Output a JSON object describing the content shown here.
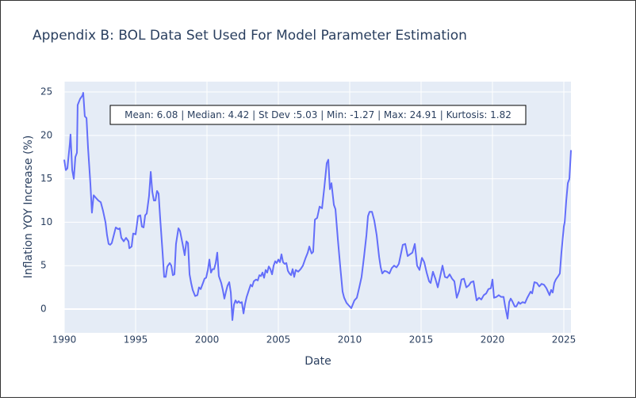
{
  "chart_data": {
    "type": "line",
    "title": "Appendix B: BOL Data Set Used For Model Parameter Estimation",
    "xlabel": "Date",
    "ylabel": "Inflation YOY Increase (%)",
    "annotation": "Mean: 6.08 | Median: 4.42 | St Dev :5.03 | Min: -1.27 | Max: 24.91 | Kurtosis: 1.82",
    "xlim": [
      1990,
      2025.5
    ],
    "xticks": [
      1990,
      1995,
      2000,
      2005,
      2010,
      2015,
      2020,
      2025
    ],
    "ylim": [
      -2.74,
      26.19
    ],
    "yticks": [
      0,
      5,
      10,
      15,
      20,
      25
    ],
    "grid": true,
    "x": [
      1990,
      1990.11,
      1990.22,
      1990.39,
      1990.44,
      1990.56,
      1990.67,
      1990.78,
      1990.89,
      1990.94,
      1991.11,
      1991.28,
      1991.33,
      1991.44,
      1991.56,
      1991.67,
      1991.83,
      1991.94,
      1992.06,
      1992.22,
      1992.39,
      1992.56,
      1992.72,
      1992.89,
      1993,
      1993.11,
      1993.22,
      1993.33,
      1993.44,
      1993.61,
      1993.78,
      1993.89,
      1994,
      1994.17,
      1994.33,
      1994.5,
      1994.56,
      1994.72,
      1994.83,
      1995,
      1995.17,
      1995.33,
      1995.44,
      1995.56,
      1995.67,
      1995.78,
      1995.94,
      1996.06,
      1996.17,
      1996.28,
      1996.39,
      1996.5,
      1996.61,
      1996.72,
      1996.89,
      1997,
      1997.11,
      1997.22,
      1997.39,
      1997.5,
      1997.61,
      1997.72,
      1997.83,
      1998,
      1998.11,
      1998.28,
      1998.44,
      1998.56,
      1998.67,
      1998.78,
      1998.89,
      1999,
      1999.17,
      1999.33,
      1999.44,
      1999.56,
      1999.72,
      1999.83,
      1999.94,
      2000.06,
      2000.17,
      2000.28,
      2000.39,
      2000.5,
      2000.61,
      2000.72,
      2000.83,
      2001,
      2001.11,
      2001.22,
      2001.33,
      2001.44,
      2001.56,
      2001.67,
      2001.78,
      2001.89,
      2002,
      2002.11,
      2002.22,
      2002.33,
      2002.44,
      2002.56,
      2002.67,
      2002.78,
      2002.94,
      2003.06,
      2003.17,
      2003.28,
      2003.44,
      2003.56,
      2003.67,
      2003.78,
      2003.89,
      2004,
      2004.11,
      2004.22,
      2004.33,
      2004.44,
      2004.56,
      2004.67,
      2004.78,
      2004.89,
      2005,
      2005.11,
      2005.22,
      2005.33,
      2005.44,
      2005.56,
      2005.67,
      2005.78,
      2005.89,
      2006,
      2006.11,
      2006.22,
      2006.39,
      2006.56,
      2006.72,
      2006.89,
      2007.06,
      2007.17,
      2007.33,
      2007.44,
      2007.56,
      2007.72,
      2007.89,
      2008.06,
      2008.22,
      2008.39,
      2008.5,
      2008.61,
      2008.72,
      2008.89,
      2009,
      2009.17,
      2009.33,
      2009.5,
      2009.61,
      2009.78,
      2009.89,
      2010.11,
      2010.33,
      2010.5,
      2010.67,
      2010.83,
      2011,
      2011.17,
      2011.28,
      2011.39,
      2011.56,
      2011.72,
      2011.89,
      2012.06,
      2012.17,
      2012.28,
      2012.44,
      2012.61,
      2012.78,
      2012.94,
      2013.11,
      2013.28,
      2013.44,
      2013.72,
      2013.89,
      2014.06,
      2014.22,
      2014.39,
      2014.56,
      2014.72,
      2014.89,
      2015.06,
      2015.22,
      2015.39,
      2015.56,
      2015.67,
      2015.83,
      2016,
      2016.17,
      2016.33,
      2016.5,
      2016.67,
      2016.83,
      2017,
      2017.17,
      2017.33,
      2017.5,
      2017.67,
      2017.83,
      2018,
      2018.17,
      2018.33,
      2018.5,
      2018.67,
      2018.78,
      2018.89,
      2019.06,
      2019.22,
      2019.39,
      2019.56,
      2019.72,
      2019.89,
      2020,
      2020.11,
      2020.28,
      2020.44,
      2020.61,
      2020.78,
      2020.89,
      2021.06,
      2021.17,
      2021.28,
      2021.39,
      2021.56,
      2021.67,
      2021.83,
      2021.94,
      2022.11,
      2022.28,
      2022.44,
      2022.67,
      2022.78,
      2022.94,
      2023.11,
      2023.28,
      2023.44,
      2023.61,
      2023.78,
      2023.89,
      2024,
      2024.11,
      2024.22,
      2024.33,
      2024.44,
      2024.61,
      2024.72,
      2024.83,
      2025,
      2025.06,
      2025.17,
      2025.28,
      2025.39,
      2025.5
    ],
    "series": [
      {
        "color": "#636efa",
        "values": [
          17.2,
          16,
          16.2,
          19,
          20.1,
          16,
          15,
          17.5,
          18,
          23.5,
          24.2,
          24.6,
          24.91,
          22.2,
          22,
          18.5,
          14.5,
          11.1,
          13.1,
          12.8,
          12.5,
          12.3,
          11.3,
          10,
          8.5,
          7.5,
          7.4,
          7.6,
          8.3,
          9.4,
          9.2,
          9.3,
          8.2,
          7.8,
          8.2,
          7.8,
          7,
          7.2,
          8.7,
          8.6,
          10.7,
          10.8,
          9.5,
          9.4,
          10.8,
          11,
          13,
          15.8,
          13.5,
          12.5,
          12.5,
          13.6,
          13.3,
          10.5,
          6.5,
          3.7,
          3.7,
          4.9,
          5.3,
          5,
          3.9,
          4,
          7.5,
          9.3,
          9,
          7.6,
          6.2,
          7.8,
          7.6,
          4,
          3,
          2.2,
          1.5,
          1.6,
          2.5,
          2.3,
          3,
          3.5,
          3.6,
          4.5,
          5.7,
          4.2,
          4.6,
          4.6,
          5.3,
          6.5,
          3.8,
          3,
          2.2,
          1.2,
          2,
          2.7,
          3.1,
          1.9,
          -1.27,
          0.5,
          1,
          0.7,
          0.9,
          0.7,
          0.8,
          -0.5,
          0.6,
          1.4,
          2.2,
          2.8,
          2.6,
          3.2,
          3.4,
          3.3,
          3.9,
          3.8,
          4.2,
          3.6,
          4.5,
          4.2,
          4.9,
          4.6,
          4,
          5,
          5.5,
          5.3,
          5.7,
          5.4,
          6.3,
          5.4,
          5.2,
          5.3,
          4.4,
          4.1,
          3.9,
          4.6,
          3.7,
          4.5,
          4.3,
          4.6,
          5,
          5.8,
          6.5,
          7.2,
          6.4,
          6.6,
          10.3,
          10.5,
          11.8,
          11.6,
          14,
          16.8,
          17.2,
          13.8,
          14.5,
          12,
          11.5,
          8,
          5,
          2,
          1.3,
          0.7,
          0.5,
          0.1,
          1,
          1.3,
          2.5,
          3.7,
          6,
          8.5,
          10.7,
          11.2,
          11.2,
          10.2,
          8.5,
          6,
          4.8,
          4.1,
          4.4,
          4.3,
          4.1,
          4.7,
          5,
          4.8,
          5.2,
          7.4,
          7.5,
          6.1,
          6.3,
          6.5,
          7.5,
          5,
          4.5,
          5.9,
          5.4,
          4.2,
          3.2,
          3,
          4.3,
          3.5,
          2.5,
          3.7,
          5,
          3.7,
          3.6,
          4,
          3.5,
          3.2,
          1.3,
          2.1,
          3.4,
          3.5,
          2.5,
          2.7,
          3.1,
          3.2,
          2.1,
          1,
          1.3,
          1.1,
          1.6,
          1.8,
          2.3,
          2.4,
          3.4,
          1.3,
          1.4,
          1.6,
          1.4,
          1.4,
          0.3,
          -1.1,
          0.8,
          1.2,
          0.9,
          0.3,
          0.3,
          0.8,
          0.6,
          0.8,
          0.7,
          1.3,
          2,
          1.8,
          3.1,
          3,
          2.6,
          2.9,
          2.8,
          2.4,
          2,
          1.6,
          2.2,
          1.9,
          3,
          3.4,
          3.8,
          4.1,
          6.5,
          9.5,
          10,
          12.5,
          14.5,
          15,
          18.3
        ]
      }
    ]
  }
}
